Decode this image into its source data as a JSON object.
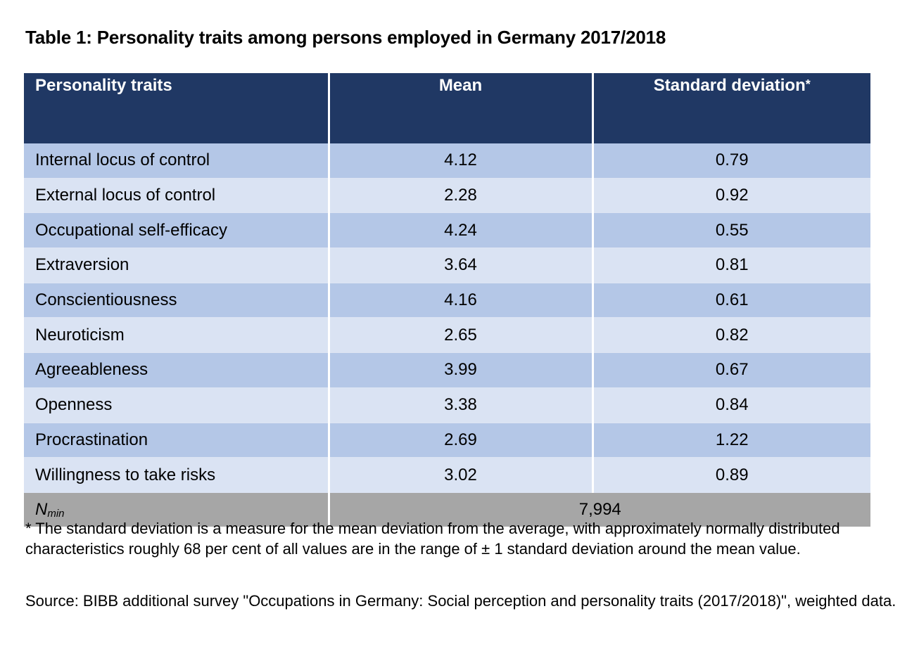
{
  "title": "Table 1: Personality traits among persons employed in Germany 2017/2018",
  "table": {
    "headers": {
      "trait": "Personality traits",
      "mean": "Mean",
      "sd": "Standard deviation",
      "sd_marker": "*"
    },
    "rows": [
      {
        "trait": "Internal locus of control",
        "mean": "4.12",
        "sd": "0.79"
      },
      {
        "trait": "External locus of control",
        "mean": "2.28",
        "sd": "0.92"
      },
      {
        "trait": "Occupational self-efficacy",
        "mean": "4.24",
        "sd": "0.55"
      },
      {
        "trait": "Extraversion",
        "mean": "3.64",
        "sd": "0.81"
      },
      {
        "trait": "Conscientiousness",
        "mean": "4.16",
        "sd": "0.61"
      },
      {
        "trait": "Neuroticism",
        "mean": "2.65",
        "sd": "0.82"
      },
      {
        "trait": "Agreeableness",
        "mean": "3.99",
        "sd": "0.67"
      },
      {
        "trait": "Openness",
        "mean": "3.38",
        "sd": "0.84"
      },
      {
        "trait": "Procrastination",
        "mean": "2.69",
        "sd": "1.22"
      },
      {
        "trait": "Willingness to take risks",
        "mean": "3.02",
        "sd": "0.89"
      }
    ],
    "footer": {
      "label_base": "N",
      "label_sub": "min",
      "value": "7,994"
    }
  },
  "note": "* The standard deviation is a measure for the mean deviation from the average, with approximately normally distributed characteristics roughly 68 per cent of all values are in the range of ± 1 standard deviation around the mean value.",
  "source": "Source: BIBB additional survey \"Occupations in Germany: Social perception and personality traits (2017/2018)\", weighted data.",
  "colors": {
    "header_bg": "#203864",
    "row_dark": "#b4c7e7",
    "row_light": "#dae3f3",
    "footer_bg": "#a6a6a6"
  }
}
